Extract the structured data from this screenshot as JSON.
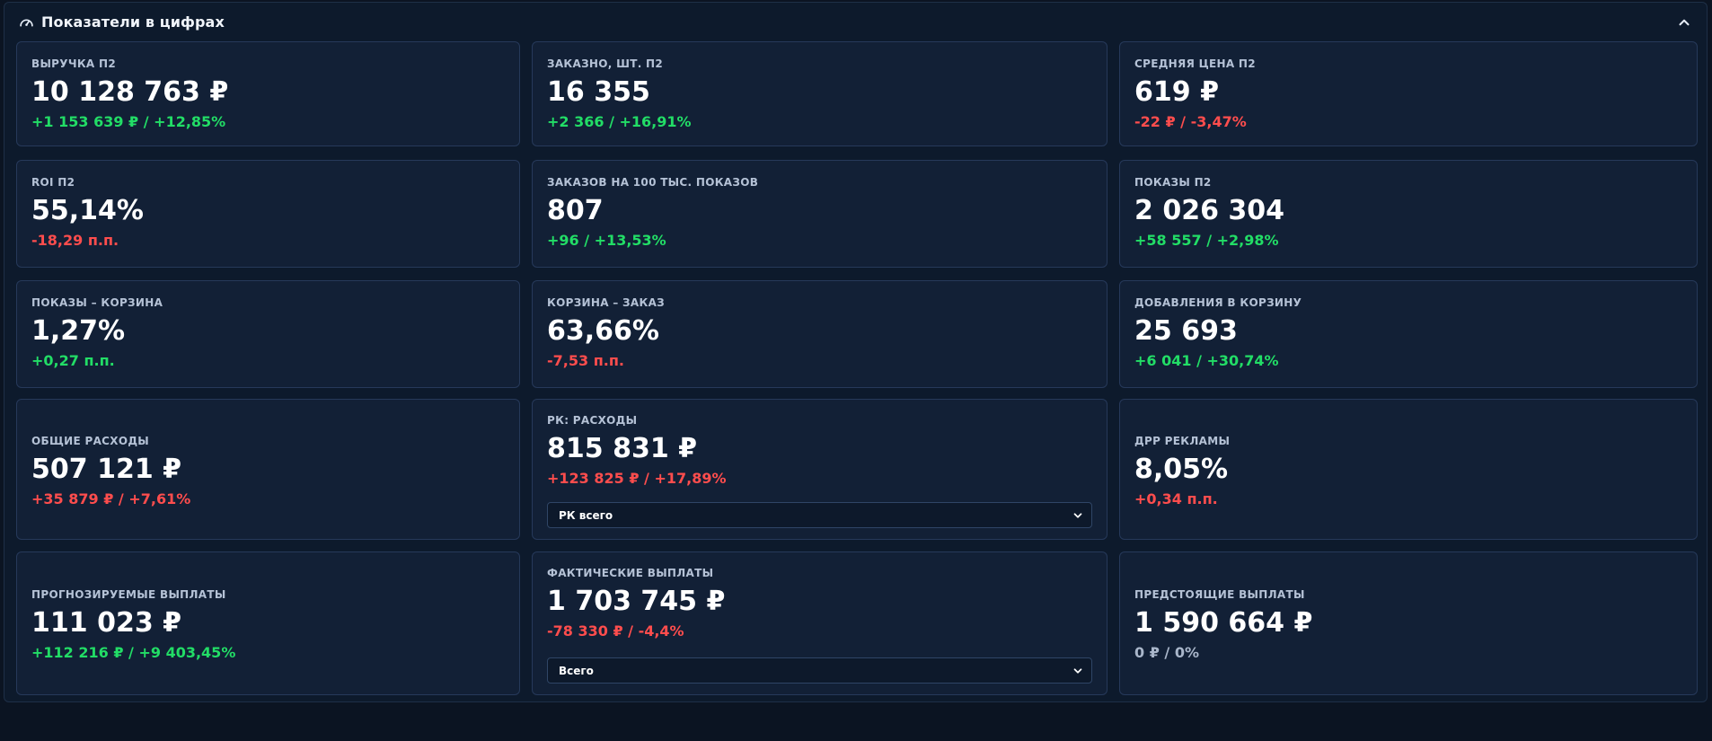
{
  "panel": {
    "title": "Показатели в цифрах",
    "header_icon": "gauge-icon",
    "collapse_icon": "chevron-up-icon"
  },
  "cards": [
    {
      "label": "ВЫРУЧКА П2",
      "value": "10 128 763 ₽",
      "delta": "+1 153 639 ₽ / +12,85%",
      "delta_tone": "positive"
    },
    {
      "label": "ЗАКАЗНО, ШТ. П2",
      "value": "16 355",
      "delta": "+2 366 / +16,91%",
      "delta_tone": "positive"
    },
    {
      "label": "СРЕДНЯЯ ЦЕНА П2",
      "value": "619 ₽",
      "delta": "-22 ₽ / -3,47%",
      "delta_tone": "negative"
    },
    {
      "label": "ROI П2",
      "value": "55,14%",
      "delta": "-18,29 п.п.",
      "delta_tone": "negative"
    },
    {
      "label": "ЗАКАЗОВ НА 100 ТЫС. ПОКАЗОВ",
      "value": "807",
      "delta": "+96 / +13,53%",
      "delta_tone": "positive"
    },
    {
      "label": "ПОКАЗЫ П2",
      "value": "2 026 304",
      "delta": "+58 557 / +2,98%",
      "delta_tone": "positive"
    },
    {
      "label": "ПОКАЗЫ – КОРЗИНА",
      "value": "1,27%",
      "delta": "+0,27 п.п.",
      "delta_tone": "positive"
    },
    {
      "label": "КОРЗИНА – ЗАКАЗ",
      "value": "63,66%",
      "delta": "-7,53 п.п.",
      "delta_tone": "negative"
    },
    {
      "label": "ДОБАВЛЕНИЯ В КОРЗИНУ",
      "value": "25 693",
      "delta": "+6 041 / +30,74%",
      "delta_tone": "positive"
    },
    {
      "label": "ОБЩИЕ РАСХОДЫ",
      "value": "507 121 ₽",
      "delta": "+35 879 ₽ / +7,61%",
      "delta_tone": "negative"
    },
    {
      "label": "РК: РАСХОДЫ",
      "value": "815 831 ₽",
      "delta": "+123 825 ₽ / +17,89%",
      "delta_tone": "negative",
      "select": "РК всего"
    },
    {
      "label": "ДРР РЕКЛАМЫ",
      "value": "8,05%",
      "delta": "+0,34 п.п.",
      "delta_tone": "negative"
    },
    {
      "label": "ПРОГНОЗИРУЕМЫЕ ВЫПЛАТЫ",
      "value": "111 023 ₽",
      "delta": "+112 216 ₽ / +9 403,45%",
      "delta_tone": "positive"
    },
    {
      "label": "ФАКТИЧЕСКИЕ ВЫПЛАТЫ",
      "value": "1 703 745 ₽",
      "delta": "-78 330 ₽ / -4,4%",
      "delta_tone": "negative",
      "select": "Всего"
    },
    {
      "label": "ПРЕДСТОЯЩИЕ ВЫПЛАТЫ",
      "value": "1 590 664 ₽",
      "delta": "0 ₽ / 0%",
      "delta_tone": "neutral"
    }
  ],
  "colors": {
    "background": "#0b1422",
    "card": "#122036",
    "positive": "#22dd66",
    "negative": "#ff4d4d",
    "neutral": "#a9b6ca"
  }
}
